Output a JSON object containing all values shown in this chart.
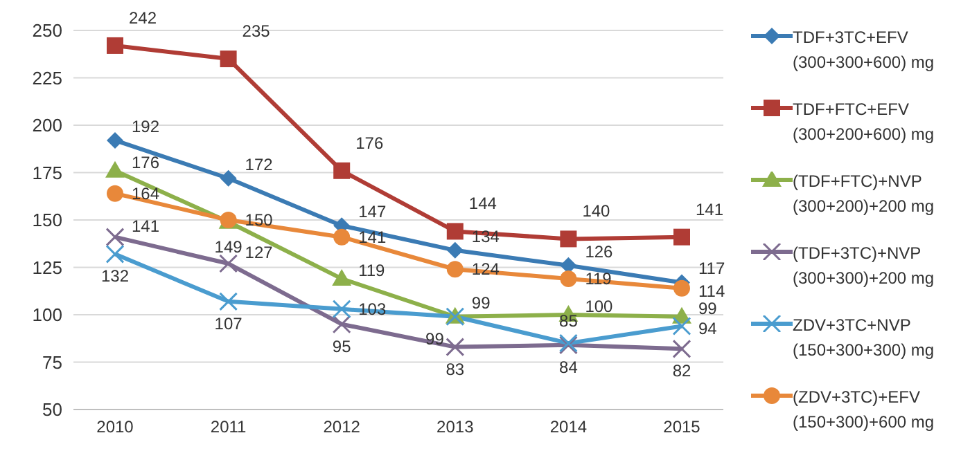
{
  "chart_data": {
    "type": "line",
    "categories": [
      "2010",
      "2011",
      "2012",
      "2013",
      "2014",
      "2015"
    ],
    "ylim": [
      50,
      250
    ],
    "yticks": [
      50,
      75,
      100,
      125,
      150,
      175,
      200,
      225,
      250
    ],
    "grid": "y",
    "legend": "right",
    "data_labels": true,
    "series": [
      {
        "name": "TDF+3TC+EFV (300+300+600) mg",
        "color": "#3b7bb4",
        "marker": "diamond",
        "values": [
          192,
          172,
          147,
          134,
          126,
          117
        ]
      },
      {
        "name": "TDF+FTC+EFV (300+200+600) mg",
        "color": "#b03c35",
        "marker": "square",
        "values": [
          242,
          235,
          176,
          144,
          140,
          141
        ]
      },
      {
        "name": "(TDF+FTC)+NVP (300+200)+200 mg",
        "color": "#8db04a",
        "marker": "triangle",
        "values": [
          176,
          149,
          119,
          99,
          100,
          99
        ]
      },
      {
        "name": "(TDF+3TC)+NVP (300+300)+200 mg",
        "color": "#7d6b8f",
        "marker": "cross",
        "values": [
          141,
          127,
          95,
          83,
          84,
          82
        ]
      },
      {
        "name": "ZDV+3TC+NVP (150+300+300) mg",
        "color": "#4a9ccf",
        "marker": "cross",
        "values": [
          132,
          107,
          103,
          99,
          85,
          94
        ]
      },
      {
        "name": "(ZDV+3TC)+EFV (150+300)+600 mg",
        "color": "#e8883a",
        "marker": "circle",
        "values": [
          164,
          150,
          141,
          124,
          119,
          114
        ]
      }
    ]
  }
}
